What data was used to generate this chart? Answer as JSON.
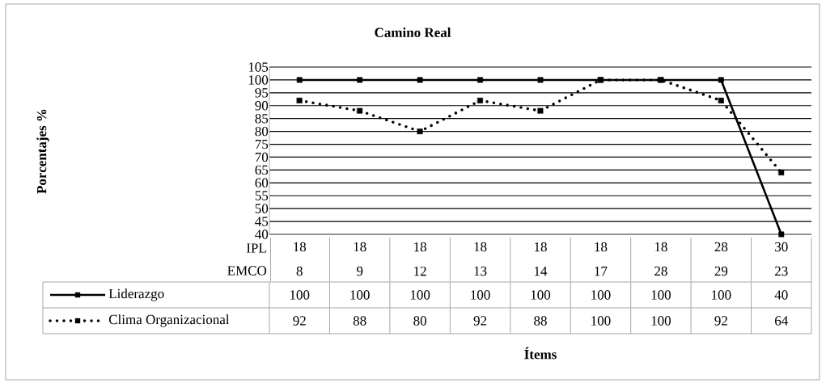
{
  "chart_data": {
    "type": "line",
    "title": "Camino Real",
    "categories": [
      "18 8",
      "18 9",
      "18 12",
      "18 13",
      "18 14",
      "18 17",
      "18 28",
      "28 29",
      "30 23"
    ],
    "annotations": [
      "IPL",
      "EMCO",
      "Porcentajes %",
      "Ítems"
    ],
    "series": [
      {
        "name": "Liderazgo",
        "color": "#000000",
        "line_style": "solid",
        "values": [
          100,
          100,
          100,
          100,
          100,
          100,
          100,
          100,
          40
        ]
      },
      {
        "name": "Clima Organizacional",
        "color": "#000000",
        "line_style": "dotted",
        "values": [
          92,
          88,
          80,
          92,
          88,
          100,
          100,
          92,
          64
        ]
      }
    ],
    "ylim": [
      40,
      105
    ],
    "yticks": [
      40,
      45,
      50,
      55,
      60,
      65,
      70,
      75,
      80,
      85,
      90,
      95,
      100,
      105
    ],
    "grid": "y",
    "marker": "square",
    "legend": "bottom",
    "data_labels": true
  }
}
